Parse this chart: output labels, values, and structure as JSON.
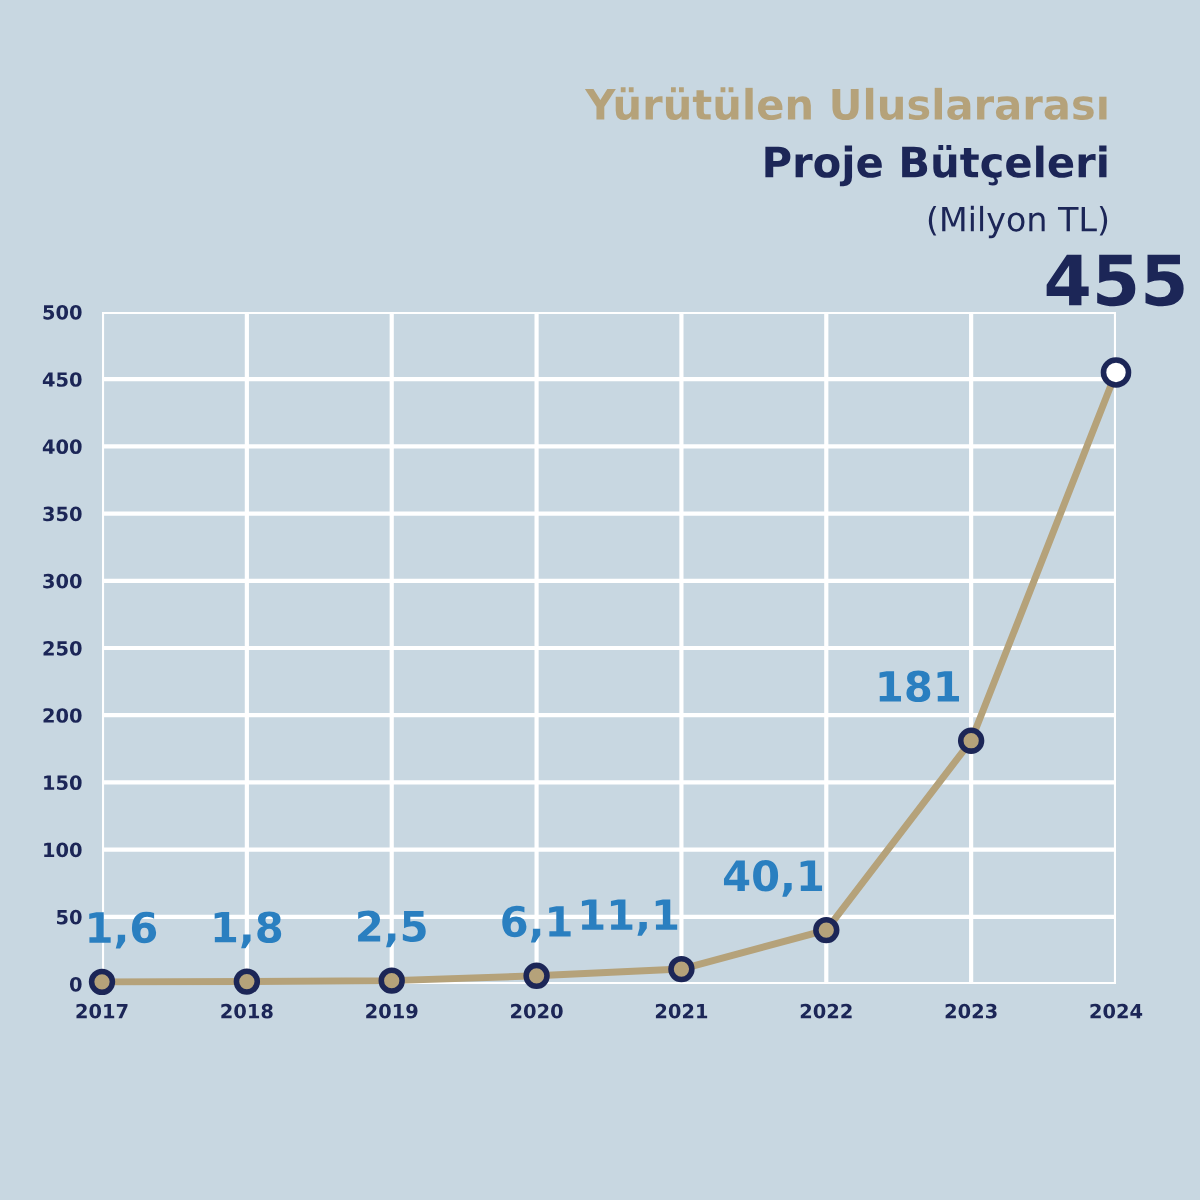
{
  "chart_data": {
    "type": "line",
    "title": "Yürütülen Uluslararası",
    "subtitle": "Proje Bütçeleri",
    "annotations": [
      "(Milyon TL)"
    ],
    "categories": [
      "2017",
      "2018",
      "2019",
      "2020",
      "2021",
      "2022",
      "2023",
      "2024"
    ],
    "values": [
      1.6,
      1.8,
      2.5,
      6.1,
      11.1,
      40.1,
      181,
      455
    ],
    "value_labels": [
      "1,6",
      "1,8",
      "2,5",
      "6,1",
      "11,1",
      "40,1",
      "181",
      "455"
    ],
    "color": "#b5a27a",
    "colors": [
      "#b5a27a",
      "#b5a27a",
      "#b5a27a",
      "#b5a27a",
      "#b5a27a",
      "#b5a27a",
      "#b5a27a",
      "#ffffff"
    ],
    "ylim": [
      0,
      500
    ],
    "yticks": [
      0,
      50,
      100,
      150,
      200,
      250,
      300,
      350,
      400,
      450,
      500
    ],
    "grid": true,
    "marker": "circle",
    "line_style": "solid"
  }
}
